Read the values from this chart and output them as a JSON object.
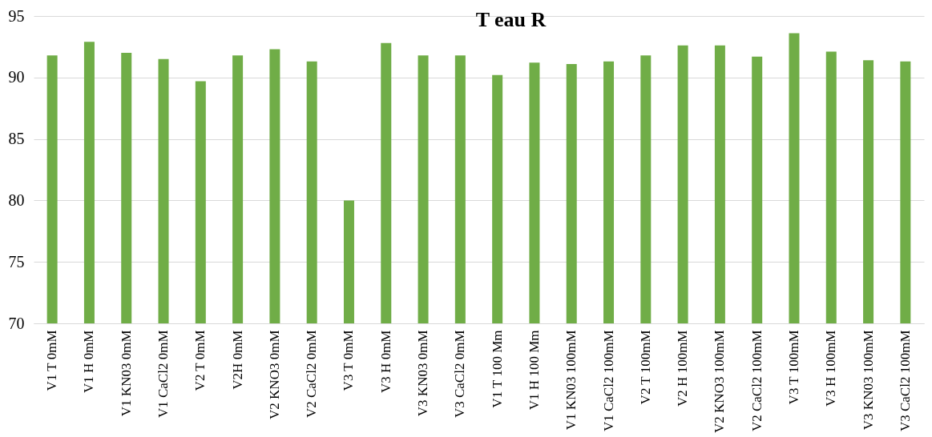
{
  "chart_data": {
    "type": "bar",
    "title": "T eau R",
    "categories": [
      "V1 T 0mM",
      "V1 H 0mM",
      "V1 KN03 0mM",
      "V1 CaCl2 0mM",
      "V2 T 0mM",
      "V2H 0mM",
      "V2 KNO3 0mM",
      "V2 CaCl2 0mM",
      "V3 T 0mM",
      "V3 H 0mM",
      "V3 KN03 0mM",
      "V3 CaCl2 0mM",
      "V1 T 100 Mm",
      "V1 H 100 Mm",
      "V1 KN03 100mM",
      "V1 CaCl2 100mM",
      "V2 T 100mM",
      "V2 H 100mM",
      "V2 KNO3 100mM",
      "V2 CaCl2 100mM",
      "V3 T 100mM",
      "V3 H 100mM",
      "V3 KN03 100mM",
      "V3 CaCl2 100mM"
    ],
    "values": [
      91.8,
      92.9,
      92.0,
      91.5,
      89.7,
      91.8,
      92.3,
      91.3,
      80.0,
      92.8,
      91.8,
      91.8,
      90.2,
      91.2,
      91.1,
      91.3,
      91.8,
      92.6,
      92.6,
      91.7,
      93.6,
      92.1,
      91.4,
      91.3
    ],
    "color": "#70ad47",
    "ylim": [
      70,
      95
    ],
    "yticks": [
      70,
      75,
      80,
      85,
      90,
      95
    ],
    "grid": "y"
  }
}
